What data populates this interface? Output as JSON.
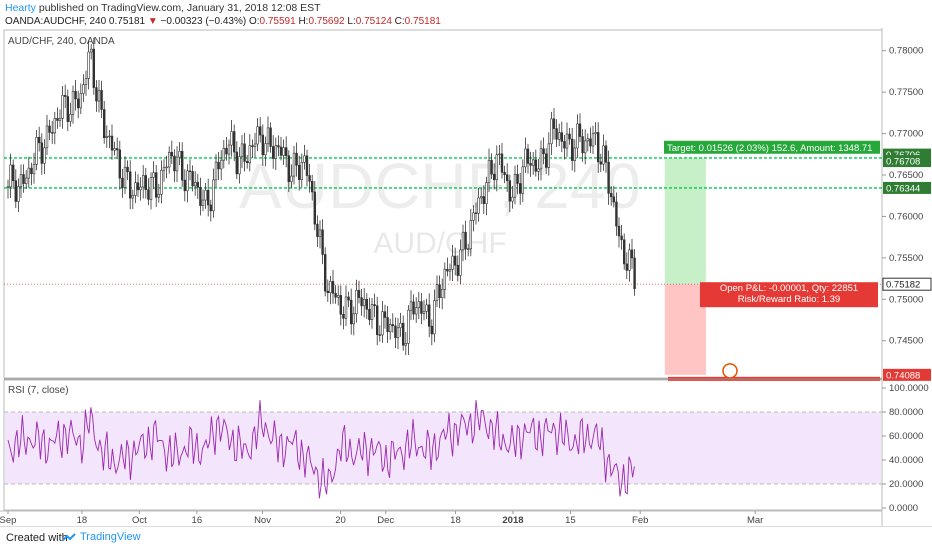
{
  "header": {
    "user": "Hearty",
    "published_text": "published on TradingView.com, January 31, 2018 12:08 EST",
    "symbol": "OANDA:AUDCHF, 240",
    "last": "0.75181",
    "change_arrow": "▼",
    "change": "−0.00323 (−0.43%)",
    "o_label": "O:",
    "o_val": "0.75591",
    "h_label": "H:",
    "h_val": "0.75692",
    "l_label": "L:",
    "l_val": "0.75124",
    "c_label": "C:",
    "c_val": "0.75181"
  },
  "colors": {
    "up": "#26a69a",
    "down": "#ef5350",
    "candle": "#333333",
    "level": "#00c853",
    "target_zone": "#c8f0c8",
    "stop_zone": "#ffc4c4",
    "rsi_line": "#9c27b0",
    "rsi_band": "#f3e5fb",
    "price_line": "#ef5350",
    "target_box": "#26a83a",
    "stop_box": "#e53935",
    "brand": "#2196f3"
  },
  "chart_data": {
    "type": "candlestick",
    "pane_label": "AUD/CHF, 240, OANDA",
    "watermark_1": "AUDCHF, 240",
    "watermark_2": "AUD/CHF",
    "y_ticks": [
      "0.78000",
      "0.77500",
      "0.77000",
      "0.76500",
      "0.76000",
      "0.75500",
      "0.75000",
      "0.74500"
    ],
    "ylim": [
      0.7405,
      0.7825
    ],
    "x_ticks": [
      "Sep",
      "18",
      "Oct",
      "16",
      "Nov",
      "20",
      "Dec",
      "18",
      "2018",
      "15",
      "Feb",
      "Mar"
    ],
    "x_tick_dates": [
      "2017-08-31",
      "2017-09-18",
      "2017-10-02",
      "2017-10-16",
      "2017-11-01",
      "2017-11-20",
      "2017-12-01",
      "2017-12-18",
      "2018-01-01",
      "2018-01-15",
      "2018-02-01",
      "2018-03-01"
    ],
    "price_path": [
      [
        "2017-08-31",
        0.7635
      ],
      [
        "2017-09-05",
        0.765
      ],
      [
        "2017-09-10",
        0.7705
      ],
      [
        "2017-09-14",
        0.773
      ],
      [
        "2017-09-18",
        0.775
      ],
      [
        "2017-09-20",
        0.779
      ],
      [
        "2017-09-23",
        0.772
      ],
      [
        "2017-09-27",
        0.7655
      ],
      [
        "2017-10-02",
        0.763
      ],
      [
        "2017-10-06",
        0.764
      ],
      [
        "2017-10-10",
        0.767
      ],
      [
        "2017-10-14",
        0.765
      ],
      [
        "2017-10-18",
        0.761
      ],
      [
        "2017-10-21",
        0.766
      ],
      [
        "2017-10-24",
        0.7685
      ],
      [
        "2017-10-28",
        0.767
      ],
      [
        "2017-11-01",
        0.77
      ],
      [
        "2017-11-05",
        0.7675
      ],
      [
        "2017-11-08",
        0.766
      ],
      [
        "2017-11-11",
        0.7665
      ],
      [
        "2017-11-14",
        0.76
      ],
      [
        "2017-11-17",
        0.751
      ],
      [
        "2017-11-20",
        0.749
      ],
      [
        "2017-11-24",
        0.7495
      ],
      [
        "2017-11-28",
        0.7485
      ],
      [
        "2017-12-01",
        0.7465
      ],
      [
        "2017-12-05",
        0.746
      ],
      [
        "2017-12-08",
        0.749
      ],
      [
        "2017-12-12",
        0.748
      ],
      [
        "2017-12-15",
        0.752
      ],
      [
        "2017-12-18",
        0.755
      ],
      [
        "2017-12-21",
        0.757
      ],
      [
        "2017-12-25",
        0.764
      ],
      [
        "2017-12-28",
        0.7665
      ],
      [
        "2018-01-01",
        0.763
      ],
      [
        "2018-01-04",
        0.766
      ],
      [
        "2018-01-08",
        0.767
      ],
      [
        "2018-01-11",
        0.77
      ],
      [
        "2018-01-15",
        0.769
      ],
      [
        "2018-01-18",
        0.7685
      ],
      [
        "2018-01-21",
        0.77
      ],
      [
        "2018-01-24",
        0.7645
      ],
      [
        "2018-01-27",
        0.7575
      ],
      [
        "2018-01-31",
        0.7518
      ]
    ],
    "levels": [
      {
        "label": "0.76706",
        "value": 0.76706
      },
      {
        "label": "0.76708",
        "value": 0.76708
      },
      {
        "label": "0.76344",
        "value": 0.76344
      }
    ],
    "current_price": {
      "label": "0.75182",
      "value": 0.75182
    },
    "stop_price": {
      "label": "0.74088",
      "value": 0.74088
    },
    "position": {
      "entry": 0.75182,
      "target": 0.76708,
      "stop": 0.74088,
      "start": "2018-02-07",
      "end": "2018-02-17",
      "target_text": "Target: 0.01526 (2.03%) 152.6, Amount: 1348.71",
      "pnl_text": "Open P&L: -0.00001, Qty: 22851",
      "rr_text": "Risk/Reward Ratio: 1.39"
    },
    "rsi": {
      "label": "RSI (7, close)",
      "y_ticks": [
        "100.0000",
        "80.0000",
        "60.0000",
        "40.0000",
        "20.0000",
        "0.0000"
      ],
      "ylim": [
        0,
        100
      ],
      "band": [
        20,
        80
      ],
      "path": [
        [
          "2017-08-31",
          50
        ],
        [
          "2017-09-05",
          58
        ],
        [
          "2017-09-10",
          52
        ],
        [
          "2017-09-14",
          62
        ],
        [
          "2017-09-18",
          55
        ],
        [
          "2017-09-20",
          74
        ],
        [
          "2017-09-23",
          45
        ],
        [
          "2017-09-27",
          38
        ],
        [
          "2017-10-02",
          50
        ],
        [
          "2017-10-06",
          60
        ],
        [
          "2017-10-10",
          42
        ],
        [
          "2017-10-14",
          52
        ],
        [
          "2017-10-18",
          48
        ],
        [
          "2017-10-21",
          70
        ],
        [
          "2017-10-24",
          58
        ],
        [
          "2017-10-28",
          46
        ],
        [
          "2017-11-01",
          72
        ],
        [
          "2017-11-05",
          50
        ],
        [
          "2017-11-08",
          55
        ],
        [
          "2017-11-11",
          44
        ],
        [
          "2017-11-14",
          30
        ],
        [
          "2017-11-17",
          18
        ],
        [
          "2017-11-20",
          52
        ],
        [
          "2017-11-24",
          45
        ],
        [
          "2017-11-28",
          50
        ],
        [
          "2017-12-01",
          40
        ],
        [
          "2017-12-05",
          48
        ],
        [
          "2017-12-08",
          55
        ],
        [
          "2017-12-12",
          46
        ],
        [
          "2017-12-15",
          60
        ],
        [
          "2017-12-18",
          64
        ],
        [
          "2017-12-21",
          70
        ],
        [
          "2017-12-25",
          74
        ],
        [
          "2017-12-28",
          60
        ],
        [
          "2018-01-01",
          52
        ],
        [
          "2018-01-04",
          64
        ],
        [
          "2018-01-08",
          60
        ],
        [
          "2018-01-11",
          66
        ],
        [
          "2018-01-15",
          55
        ],
        [
          "2018-01-18",
          58
        ],
        [
          "2018-01-21",
          62
        ],
        [
          "2018-01-24",
          40
        ],
        [
          "2018-01-27",
          22
        ],
        [
          "2018-01-31",
          33
        ]
      ]
    }
  },
  "footer": {
    "created_with": "Created with",
    "brand": "TradingView"
  }
}
